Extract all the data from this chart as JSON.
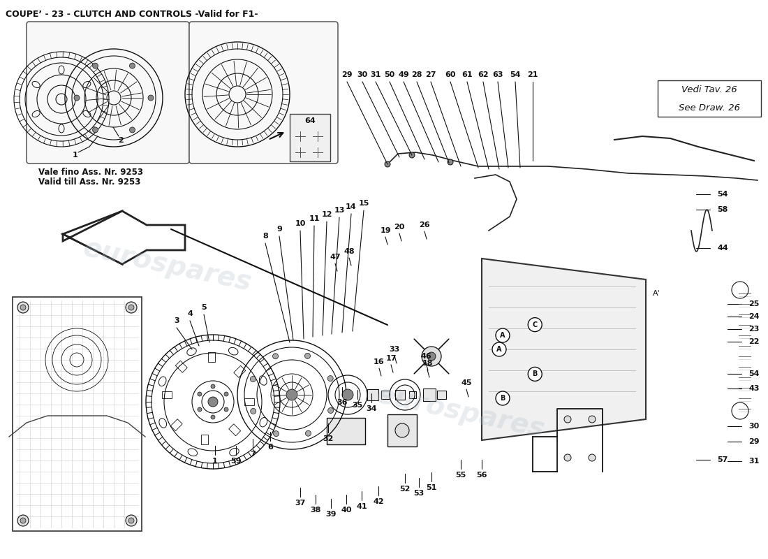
{
  "title": "COUPE’ - 23 - CLUTCH AND CONTROLS -Valid for F1-",
  "title_fontsize": 9,
  "background_color": "#ffffff",
  "watermark_text": "eurospares",
  "watermark_color": "#b0bfc8",
  "watermark_alpha": 0.28,
  "top_box_text1": "Vale fino Ass. Nr. 9253",
  "top_box_text2": "Valid till Ass. Nr. 9253",
  "vedi_text": "Vedi Tav. 26",
  "see_text": "See Draw. 26",
  "lc": "#111111",
  "label_fontsize": 8.5
}
